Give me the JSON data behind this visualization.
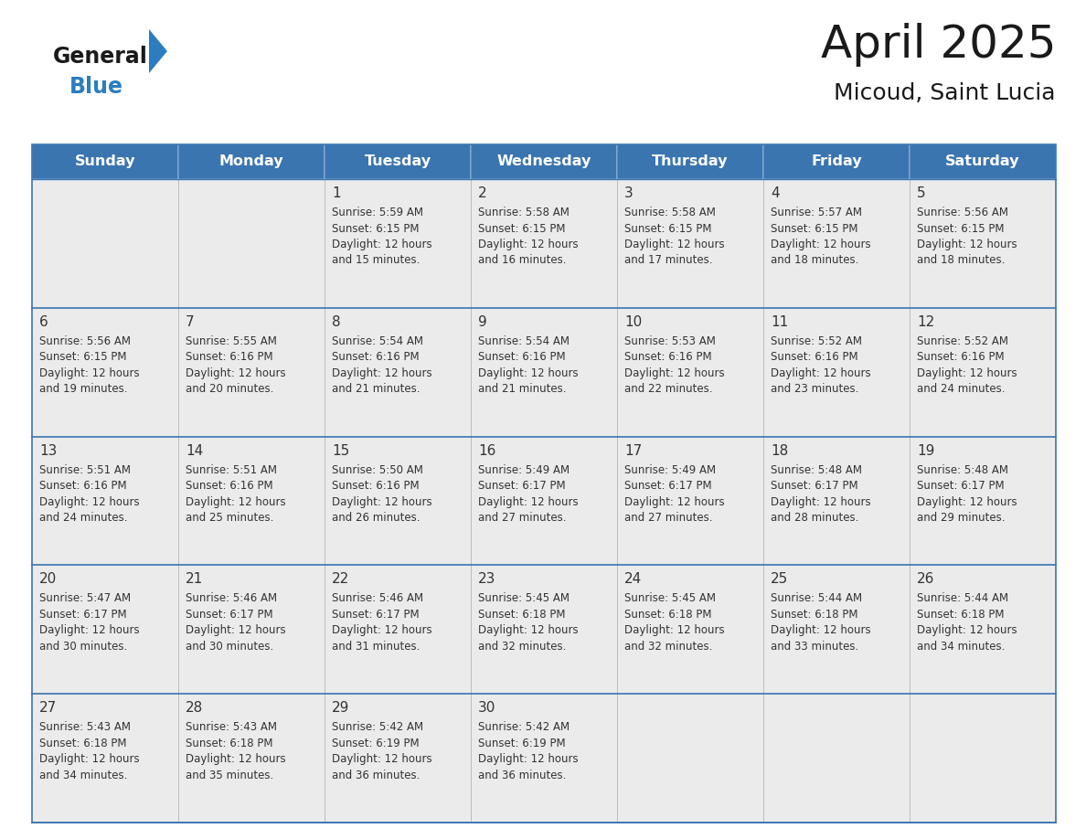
{
  "title": "April 2025",
  "subtitle": "Micoud, Saint Lucia",
  "days_of_week": [
    "Sunday",
    "Monday",
    "Tuesday",
    "Wednesday",
    "Thursday",
    "Friday",
    "Saturday"
  ],
  "header_bg": "#3A75B0",
  "header_text_color": "#FFFFFF",
  "cell_bg": "#EBEBEB",
  "border_color": "#3A75B0",
  "text_color": "#333333",
  "day_num_color": "#333333",
  "general_blue_color": "#2B7DC0",
  "general_text_color": "#1a1a1a",
  "logo_triangle_color": "#2B7DC0",
  "calendar_data": [
    [
      {
        "day": null,
        "text": ""
      },
      {
        "day": null,
        "text": ""
      },
      {
        "day": 1,
        "text": "Sunrise: 5:59 AM\nSunset: 6:15 PM\nDaylight: 12 hours\nand 15 minutes."
      },
      {
        "day": 2,
        "text": "Sunrise: 5:58 AM\nSunset: 6:15 PM\nDaylight: 12 hours\nand 16 minutes."
      },
      {
        "day": 3,
        "text": "Sunrise: 5:58 AM\nSunset: 6:15 PM\nDaylight: 12 hours\nand 17 minutes."
      },
      {
        "day": 4,
        "text": "Sunrise: 5:57 AM\nSunset: 6:15 PM\nDaylight: 12 hours\nand 18 minutes."
      },
      {
        "day": 5,
        "text": "Sunrise: 5:56 AM\nSunset: 6:15 PM\nDaylight: 12 hours\nand 18 minutes."
      }
    ],
    [
      {
        "day": 6,
        "text": "Sunrise: 5:56 AM\nSunset: 6:15 PM\nDaylight: 12 hours\nand 19 minutes."
      },
      {
        "day": 7,
        "text": "Sunrise: 5:55 AM\nSunset: 6:16 PM\nDaylight: 12 hours\nand 20 minutes."
      },
      {
        "day": 8,
        "text": "Sunrise: 5:54 AM\nSunset: 6:16 PM\nDaylight: 12 hours\nand 21 minutes."
      },
      {
        "day": 9,
        "text": "Sunrise: 5:54 AM\nSunset: 6:16 PM\nDaylight: 12 hours\nand 21 minutes."
      },
      {
        "day": 10,
        "text": "Sunrise: 5:53 AM\nSunset: 6:16 PM\nDaylight: 12 hours\nand 22 minutes."
      },
      {
        "day": 11,
        "text": "Sunrise: 5:52 AM\nSunset: 6:16 PM\nDaylight: 12 hours\nand 23 minutes."
      },
      {
        "day": 12,
        "text": "Sunrise: 5:52 AM\nSunset: 6:16 PM\nDaylight: 12 hours\nand 24 minutes."
      }
    ],
    [
      {
        "day": 13,
        "text": "Sunrise: 5:51 AM\nSunset: 6:16 PM\nDaylight: 12 hours\nand 24 minutes."
      },
      {
        "day": 14,
        "text": "Sunrise: 5:51 AM\nSunset: 6:16 PM\nDaylight: 12 hours\nand 25 minutes."
      },
      {
        "day": 15,
        "text": "Sunrise: 5:50 AM\nSunset: 6:16 PM\nDaylight: 12 hours\nand 26 minutes."
      },
      {
        "day": 16,
        "text": "Sunrise: 5:49 AM\nSunset: 6:17 PM\nDaylight: 12 hours\nand 27 minutes."
      },
      {
        "day": 17,
        "text": "Sunrise: 5:49 AM\nSunset: 6:17 PM\nDaylight: 12 hours\nand 27 minutes."
      },
      {
        "day": 18,
        "text": "Sunrise: 5:48 AM\nSunset: 6:17 PM\nDaylight: 12 hours\nand 28 minutes."
      },
      {
        "day": 19,
        "text": "Sunrise: 5:48 AM\nSunset: 6:17 PM\nDaylight: 12 hours\nand 29 minutes."
      }
    ],
    [
      {
        "day": 20,
        "text": "Sunrise: 5:47 AM\nSunset: 6:17 PM\nDaylight: 12 hours\nand 30 minutes."
      },
      {
        "day": 21,
        "text": "Sunrise: 5:46 AM\nSunset: 6:17 PM\nDaylight: 12 hours\nand 30 minutes."
      },
      {
        "day": 22,
        "text": "Sunrise: 5:46 AM\nSunset: 6:17 PM\nDaylight: 12 hours\nand 31 minutes."
      },
      {
        "day": 23,
        "text": "Sunrise: 5:45 AM\nSunset: 6:18 PM\nDaylight: 12 hours\nand 32 minutes."
      },
      {
        "day": 24,
        "text": "Sunrise: 5:45 AM\nSunset: 6:18 PM\nDaylight: 12 hours\nand 32 minutes."
      },
      {
        "day": 25,
        "text": "Sunrise: 5:44 AM\nSunset: 6:18 PM\nDaylight: 12 hours\nand 33 minutes."
      },
      {
        "day": 26,
        "text": "Sunrise: 5:44 AM\nSunset: 6:18 PM\nDaylight: 12 hours\nand 34 minutes."
      }
    ],
    [
      {
        "day": 27,
        "text": "Sunrise: 5:43 AM\nSunset: 6:18 PM\nDaylight: 12 hours\nand 34 minutes."
      },
      {
        "day": 28,
        "text": "Sunrise: 5:43 AM\nSunset: 6:18 PM\nDaylight: 12 hours\nand 35 minutes."
      },
      {
        "day": 29,
        "text": "Sunrise: 5:42 AM\nSunset: 6:19 PM\nDaylight: 12 hours\nand 36 minutes."
      },
      {
        "day": 30,
        "text": "Sunrise: 5:42 AM\nSunset: 6:19 PM\nDaylight: 12 hours\nand 36 minutes."
      },
      {
        "day": null,
        "text": ""
      },
      {
        "day": null,
        "text": ""
      },
      {
        "day": null,
        "text": ""
      }
    ]
  ]
}
